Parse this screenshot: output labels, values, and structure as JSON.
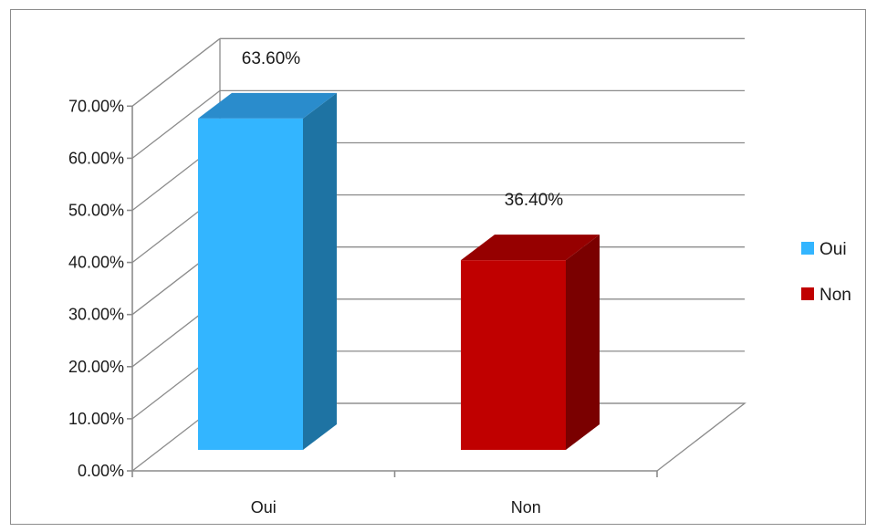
{
  "chart_data": {
    "type": "bar",
    "title": "",
    "xlabel": "",
    "ylabel": "",
    "categories": [
      "Oui",
      "Non"
    ],
    "values": [
      63.6,
      36.4
    ],
    "data_labels": [
      "63.60%",
      "36.40%"
    ],
    "ylim": [
      0,
      70
    ],
    "yticks": [
      0,
      10,
      20,
      30,
      40,
      50,
      60,
      70
    ],
    "ytick_labels": [
      "0.00%",
      "10.00%",
      "20.00%",
      "30.00%",
      "40.00%",
      "50.00%",
      "60.00%",
      "70.00%"
    ],
    "grid": true,
    "three_d": true,
    "legend": {
      "position": "right",
      "entries": [
        {
          "label": "Oui",
          "color": "#33b5ff"
        },
        {
          "label": "Non",
          "color": "#c00000"
        }
      ]
    },
    "colors": {
      "Oui": {
        "front": "#33b5ff",
        "side": "#1e73a3",
        "top": "#2a8ccc"
      },
      "Non": {
        "front": "#c00000",
        "side": "#7a0000",
        "top": "#960000"
      }
    }
  }
}
